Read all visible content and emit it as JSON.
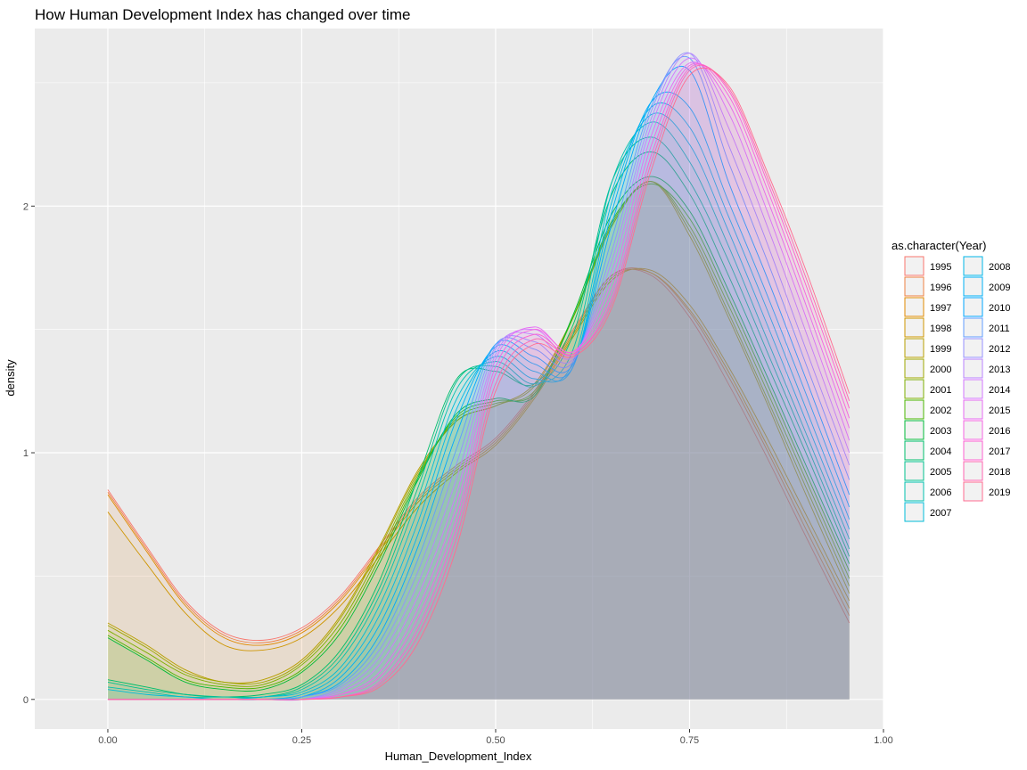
{
  "chart_data": {
    "type": "area",
    "title": "How Human Development Index has changed over time",
    "xlabel": "Human_Development_Index",
    "ylabel": "density",
    "xlim": [
      -0.0942,
      1.0
    ],
    "ylim": [
      -0.12,
      2.72
    ],
    "x_ticks": [
      {
        "value": 0.0,
        "label": "0.00"
      },
      {
        "value": 0.25,
        "label": "0.25"
      },
      {
        "value": 0.5,
        "label": "0.50"
      },
      {
        "value": 0.75,
        "label": "0.75"
      },
      {
        "value": 1.0,
        "label": "1.00"
      }
    ],
    "y_ticks": [
      {
        "value": 0,
        "label": "0"
      },
      {
        "value": 1,
        "label": "1"
      },
      {
        "value": 2,
        "label": "2"
      }
    ],
    "grid": true,
    "legend": {
      "title": "as.character(Year)",
      "position": "right",
      "columns": 2
    },
    "x": [
      0.0,
      0.05,
      0.1,
      0.15,
      0.2,
      0.25,
      0.3,
      0.35,
      0.4,
      0.45,
      0.5,
      0.55,
      0.6,
      0.65,
      0.7,
      0.75,
      0.8,
      0.85,
      0.9,
      0.956
    ],
    "series": [
      {
        "name": "1995",
        "color": "#F8766D",
        "values": [
          0.85,
          0.62,
          0.4,
          0.27,
          0.24,
          0.29,
          0.42,
          0.62,
          0.82,
          0.95,
          1.06,
          1.25,
          1.5,
          1.72,
          1.72,
          1.55,
          1.28,
          0.98,
          0.66,
          0.31
        ]
      },
      {
        "name": "1996",
        "color": "#EE8043",
        "values": [
          0.84,
          0.61,
          0.39,
          0.26,
          0.23,
          0.28,
          0.41,
          0.61,
          0.81,
          0.94,
          1.05,
          1.24,
          1.49,
          1.72,
          1.73,
          1.57,
          1.31,
          1.01,
          0.69,
          0.34
        ]
      },
      {
        "name": "1997",
        "color": "#E08A00",
        "values": [
          0.83,
          0.6,
          0.38,
          0.25,
          0.22,
          0.27,
          0.4,
          0.6,
          0.8,
          0.93,
          1.04,
          1.23,
          1.48,
          1.71,
          1.73,
          1.58,
          1.33,
          1.03,
          0.72,
          0.37
        ]
      },
      {
        "name": "1998",
        "color": "#CE9500",
        "values": [
          0.76,
          0.55,
          0.35,
          0.22,
          0.2,
          0.25,
          0.38,
          0.58,
          0.78,
          0.92,
          1.03,
          1.22,
          1.47,
          1.7,
          1.74,
          1.6,
          1.35,
          1.06,
          0.75,
          0.4
        ]
      },
      {
        "name": "1999",
        "color": "#B79F00",
        "values": [
          0.31,
          0.22,
          0.12,
          0.07,
          0.08,
          0.16,
          0.34,
          0.62,
          0.93,
          1.13,
          1.19,
          1.28,
          1.55,
          1.92,
          2.1,
          1.88,
          1.55,
          1.2,
          0.83,
          0.43
        ]
      },
      {
        "name": "2000",
        "color": "#9DA700",
        "values": [
          0.3,
          0.21,
          0.11,
          0.07,
          0.07,
          0.15,
          0.33,
          0.61,
          0.92,
          1.13,
          1.19,
          1.27,
          1.55,
          1.92,
          2.1,
          1.9,
          1.57,
          1.22,
          0.86,
          0.46
        ]
      },
      {
        "name": "2001",
        "color": "#7CAE00",
        "values": [
          0.28,
          0.19,
          0.1,
          0.06,
          0.06,
          0.14,
          0.31,
          0.59,
          0.91,
          1.14,
          1.2,
          1.25,
          1.55,
          1.93,
          2.1,
          1.92,
          1.6,
          1.25,
          0.89,
          0.49
        ]
      },
      {
        "name": "2002",
        "color": "#49B500",
        "values": [
          0.26,
          0.17,
          0.08,
          0.05,
          0.05,
          0.12,
          0.29,
          0.57,
          0.9,
          1.15,
          1.21,
          1.24,
          1.55,
          1.94,
          2.09,
          1.95,
          1.63,
          1.28,
          0.92,
          0.52
        ]
      },
      {
        "name": "2003",
        "color": "#00BA38",
        "values": [
          0.25,
          0.16,
          0.07,
          0.04,
          0.04,
          0.11,
          0.27,
          0.55,
          0.89,
          1.16,
          1.22,
          1.23,
          1.56,
          1.97,
          2.12,
          1.98,
          1.66,
          1.31,
          0.95,
          0.55
        ]
      },
      {
        "name": "2004",
        "color": "#00BE6C",
        "values": [
          0.08,
          0.05,
          0.02,
          0.01,
          0.02,
          0.06,
          0.2,
          0.48,
          0.9,
          1.3,
          1.33,
          1.28,
          1.52,
          2.05,
          2.22,
          2.05,
          1.72,
          1.36,
          1.0,
          0.58
        ]
      },
      {
        "name": "2005",
        "color": "#00C08E",
        "values": [
          0.07,
          0.04,
          0.02,
          0.01,
          0.01,
          0.05,
          0.18,
          0.45,
          0.86,
          1.29,
          1.35,
          1.27,
          1.48,
          2.1,
          2.28,
          2.1,
          1.78,
          1.41,
          1.04,
          0.61
        ]
      },
      {
        "name": "2006",
        "color": "#00C0AF",
        "values": [
          0.05,
          0.03,
          0.01,
          0.01,
          0.01,
          0.04,
          0.16,
          0.42,
          0.82,
          1.26,
          1.37,
          1.28,
          1.42,
          2.1,
          2.34,
          2.18,
          1.84,
          1.46,
          1.08,
          0.65
        ]
      },
      {
        "name": "2007",
        "color": "#00BCD8",
        "values": [
          0.04,
          0.02,
          0.01,
          0.0,
          0.01,
          0.03,
          0.13,
          0.38,
          0.77,
          1.22,
          1.39,
          1.3,
          1.37,
          2.06,
          2.37,
          2.25,
          1.9,
          1.52,
          1.13,
          0.69
        ]
      },
      {
        "name": "2008",
        "color": "#00B7E8",
        "values": [
          0.0,
          0.0,
          0.0,
          0.0,
          0.0,
          0.02,
          0.11,
          0.34,
          0.72,
          1.18,
          1.41,
          1.33,
          1.35,
          2.02,
          2.4,
          2.32,
          1.96,
          1.58,
          1.18,
          0.73
        ]
      },
      {
        "name": "2009",
        "color": "#00B0F6",
        "values": [
          0.0,
          0.0,
          0.0,
          0.0,
          0.0,
          0.01,
          0.09,
          0.3,
          0.67,
          1.14,
          1.43,
          1.36,
          1.35,
          1.98,
          2.42,
          2.4,
          2.02,
          1.64,
          1.24,
          0.78
        ]
      },
      {
        "name": "2010",
        "color": "#00A7FF",
        "values": [
          0.0,
          0.0,
          0.0,
          0.0,
          0.0,
          0.01,
          0.07,
          0.26,
          0.62,
          1.08,
          1.44,
          1.39,
          1.36,
          1.93,
          2.42,
          2.55,
          2.1,
          1.71,
          1.3,
          0.83
        ]
      },
      {
        "name": "2011",
        "color": "#619CFF",
        "values": [
          0.0,
          0.0,
          0.0,
          0.0,
          0.0,
          0.01,
          0.06,
          0.23,
          0.57,
          1.02,
          1.44,
          1.42,
          1.37,
          1.87,
          2.4,
          2.6,
          2.18,
          1.78,
          1.36,
          0.89
        ]
      },
      {
        "name": "2012",
        "color": "#9590FF",
        "values": [
          0.0,
          0.0,
          0.0,
          0.0,
          0.0,
          0.0,
          0.05,
          0.2,
          0.52,
          0.96,
          1.43,
          1.45,
          1.38,
          1.82,
          2.38,
          2.62,
          2.25,
          1.85,
          1.42,
          0.95
        ]
      },
      {
        "name": "2013",
        "color": "#B983FF",
        "values": [
          0.0,
          0.0,
          0.0,
          0.0,
          0.0,
          0.0,
          0.04,
          0.17,
          0.47,
          0.9,
          1.42,
          1.48,
          1.39,
          1.78,
          2.35,
          2.62,
          2.32,
          1.92,
          1.49,
          1.0
        ]
      },
      {
        "name": "2014",
        "color": "#D376FF",
        "values": [
          0.0,
          0.0,
          0.0,
          0.0,
          0.0,
          0.0,
          0.03,
          0.14,
          0.42,
          0.84,
          1.4,
          1.5,
          1.4,
          1.74,
          2.32,
          2.6,
          2.38,
          1.98,
          1.55,
          1.05
        ]
      },
      {
        "name": "2015",
        "color": "#E76BF3",
        "values": [
          0.0,
          0.0,
          0.0,
          0.0,
          0.0,
          0.0,
          0.02,
          0.11,
          0.37,
          0.79,
          1.38,
          1.51,
          1.41,
          1.7,
          2.28,
          2.58,
          2.42,
          2.03,
          1.6,
          1.1
        ]
      },
      {
        "name": "2016",
        "color": "#F564E3",
        "values": [
          0.0,
          0.0,
          0.0,
          0.0,
          0.0,
          0.0,
          0.02,
          0.09,
          0.33,
          0.74,
          1.35,
          1.5,
          1.41,
          1.66,
          2.24,
          2.57,
          2.45,
          2.07,
          1.64,
          1.14
        ]
      },
      {
        "name": "2017",
        "color": "#FD61D1",
        "values": [
          0.0,
          0.0,
          0.0,
          0.0,
          0.0,
          0.0,
          0.01,
          0.07,
          0.29,
          0.7,
          1.32,
          1.48,
          1.4,
          1.63,
          2.2,
          2.56,
          2.47,
          2.1,
          1.68,
          1.18
        ]
      },
      {
        "name": "2018",
        "color": "#FF64B0",
        "values": [
          0.0,
          0.0,
          0.0,
          0.0,
          0.0,
          0.0,
          0.01,
          0.06,
          0.26,
          0.66,
          1.28,
          1.46,
          1.4,
          1.61,
          2.17,
          2.55,
          2.48,
          2.12,
          1.71,
          1.21
        ]
      },
      {
        "name": "2019",
        "color": "#FF6C91",
        "values": [
          0.0,
          0.0,
          0.0,
          0.0,
          0.0,
          0.0,
          0.01,
          0.05,
          0.23,
          0.62,
          1.25,
          1.44,
          1.39,
          1.59,
          2.14,
          2.53,
          2.49,
          2.14,
          1.74,
          1.24
        ]
      }
    ]
  }
}
